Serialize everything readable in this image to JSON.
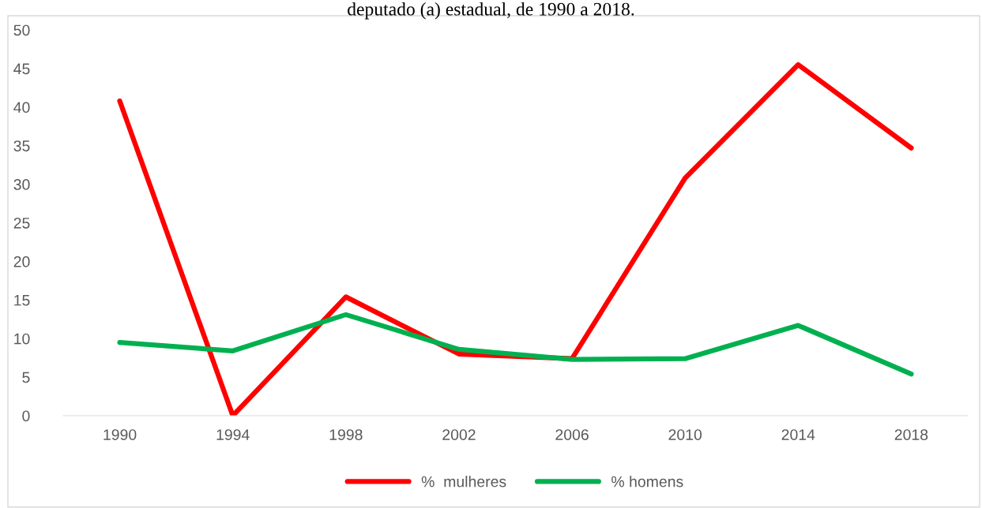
{
  "chart_data": {
    "type": "line",
    "title": "deputado (a) estadual, de 1990 a 2018.",
    "categories": [
      "1990",
      "1994",
      "1998",
      "2002",
      "2006",
      "2010",
      "2014",
      "2018"
    ],
    "series": [
      {
        "name": "%  mulheres",
        "color": "#ff0000",
        "values": [
          40.8,
          0,
          15.4,
          8.0,
          7.4,
          30.8,
          45.5,
          34.7
        ]
      },
      {
        "name": "% homens",
        "color": "#00b050",
        "values": [
          9.5,
          8.4,
          13.1,
          8.6,
          7.3,
          7.4,
          11.7,
          5.4
        ]
      }
    ],
    "ylim": [
      0,
      50
    ],
    "yticks": [
      0,
      5,
      10,
      15,
      20,
      25,
      30,
      35,
      40,
      45,
      50
    ],
    "grid": false,
    "legend": "bottom",
    "marker": "none",
    "line_style": "solid"
  }
}
